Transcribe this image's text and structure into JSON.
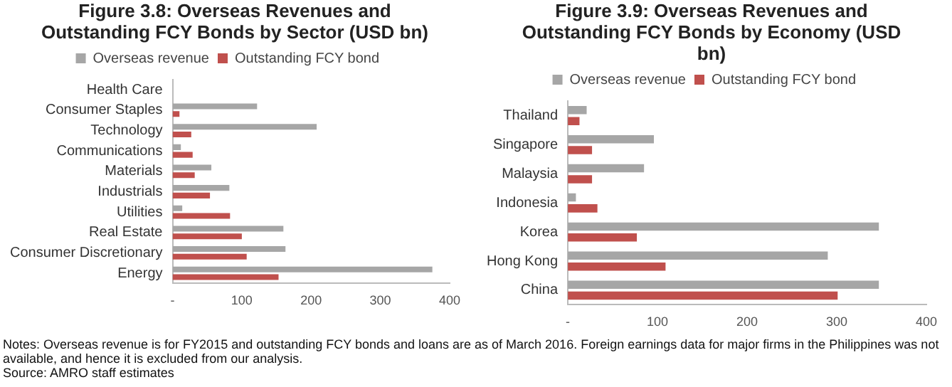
{
  "chart_data": [
    {
      "type": "bar",
      "orientation": "horizontal",
      "title": "Figure 3.8: Overseas Revenues and Outstanding FCY Bonds by Sector (USD bn)",
      "categories": [
        "Health Care",
        "Consumer Staples",
        "Technology",
        "Communications",
        "Materials",
        "Industrials",
        "Utilities",
        "Real Estate",
        "Consumer Discretionary",
        "Energy"
      ],
      "series": [
        {
          "name": "Overseas revenue",
          "color": "#a6a6a6",
          "values": [
            0,
            122,
            208,
            12,
            56,
            82,
            14,
            160,
            163,
            375
          ]
        },
        {
          "name": "Outstanding FCY bond",
          "color": "#c0504d",
          "values": [
            0,
            10,
            27,
            29,
            32,
            54,
            83,
            100,
            107,
            153
          ]
        }
      ],
      "xlim": [
        0,
        400
      ],
      "xticks": [
        {
          "value": 0,
          "label": "-"
        },
        100,
        200,
        300,
        400
      ],
      "grid": false,
      "legend": "top",
      "annotations": [
        "Notes: Overseas revenue is for FY2015 and outstanding FCY bonds and loans are as of March 2016. Foreign earnings data for major firms in the Philippines was not available, and hence it is excluded from our analysis.",
        "Source: AMRO staff estimates"
      ]
    },
    {
      "type": "bar",
      "orientation": "horizontal",
      "title": "Figure 3.9: Overseas Revenues and Outstanding FCY Bonds by Economy (USD bn)",
      "categories": [
        "Thailand",
        "Singapore",
        "Malaysia",
        "Indonesia",
        "Korea",
        "Hong Kong",
        "China"
      ],
      "series": [
        {
          "name": "Overseas revenue",
          "color": "#a6a6a6",
          "values": [
            21,
            96,
            85,
            9,
            347,
            290,
            347
          ]
        },
        {
          "name": "Outstanding FCY bond",
          "color": "#c0504d",
          "values": [
            13,
            27,
            27,
            33,
            77,
            109,
            301
          ]
        }
      ],
      "xlim": [
        0,
        400
      ],
      "xticks": [
        {
          "value": 0,
          "label": "-"
        },
        100,
        200,
        300,
        400
      ],
      "grid": false,
      "legend": "top"
    }
  ]
}
